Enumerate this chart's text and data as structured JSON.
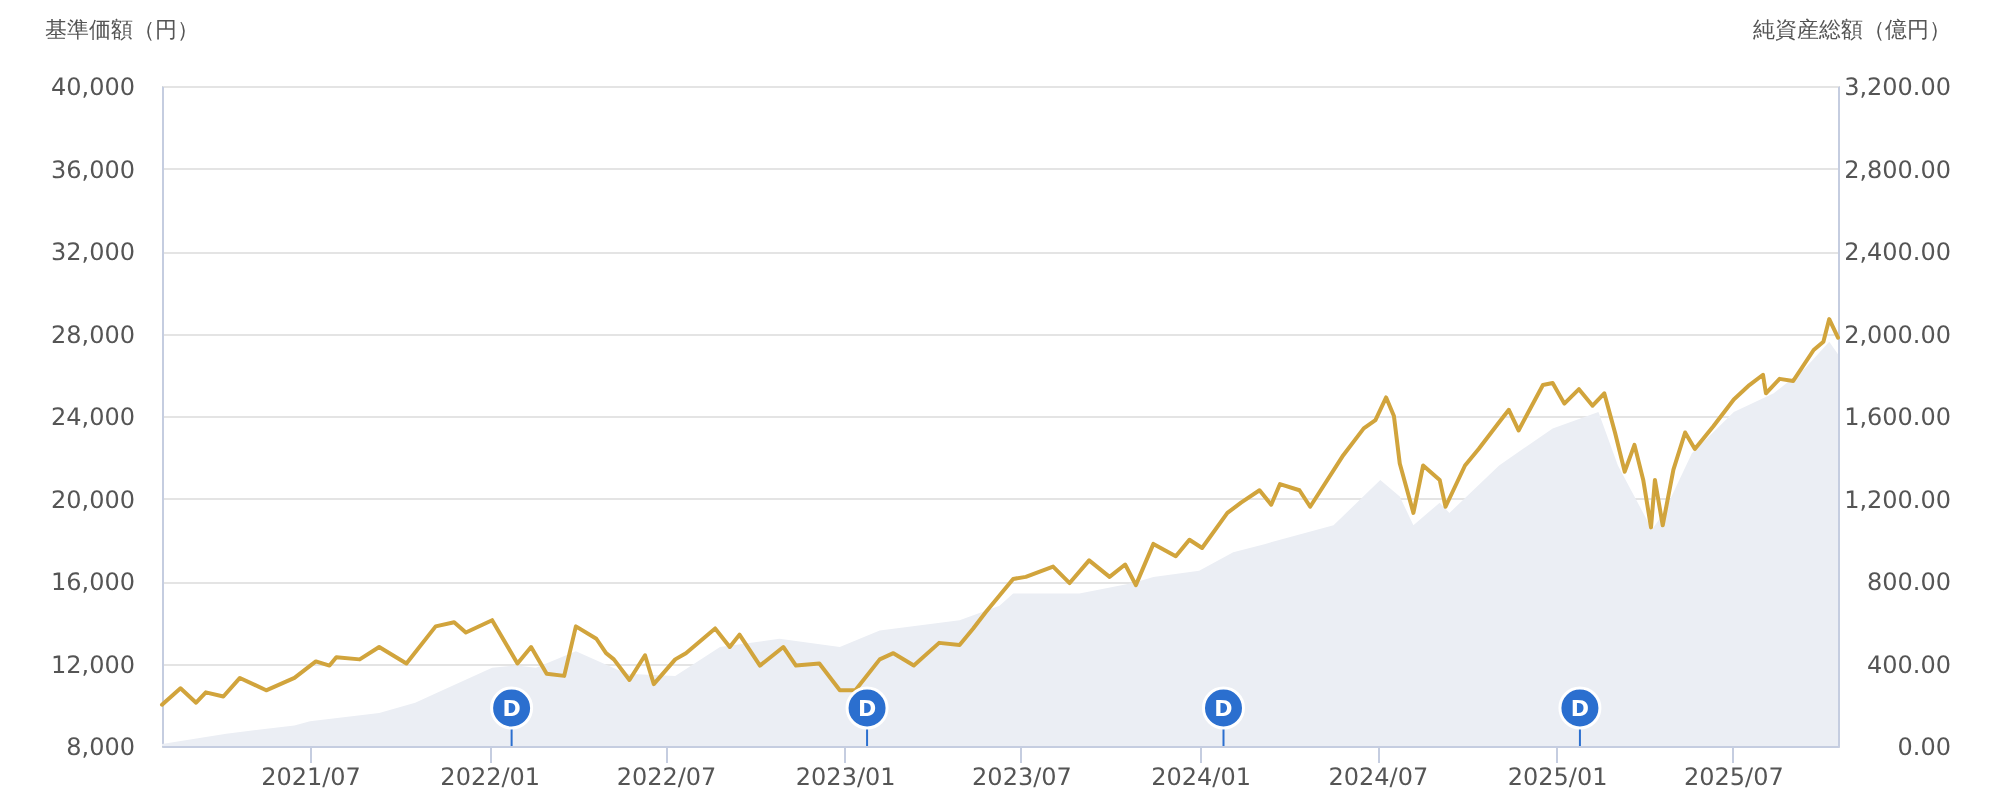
{
  "chart_data": {
    "type": "line",
    "ylabel": "基準価額（円）",
    "y2label": "純資産総額（億円）",
    "xlim": [
      "2021-01-30",
      "2025-10-17"
    ],
    "xticks": [
      {
        "value": "2021-07",
        "label": "2021/07"
      },
      {
        "value": "2022-01",
        "label": "2022/01"
      },
      {
        "value": "2022-07",
        "label": "2022/07"
      },
      {
        "value": "2023-01",
        "label": "2023/01"
      },
      {
        "value": "2023-07",
        "label": "2023/07"
      },
      {
        "value": "2024-01",
        "label": "2024/01"
      },
      {
        "value": "2024-07",
        "label": "2024/07"
      },
      {
        "value": "2025-01",
        "label": "2025/01"
      },
      {
        "value": "2025-07",
        "label": "2025/07"
      }
    ],
    "ylim": [
      8000,
      40000
    ],
    "yticks": [
      {
        "value": 8000,
        "label": "8,000"
      },
      {
        "value": 12000,
        "label": "12,000"
      },
      {
        "value": 16000,
        "label": "16,000"
      },
      {
        "value": 20000,
        "label": "20,000"
      },
      {
        "value": 24000,
        "label": "24,000"
      },
      {
        "value": 28000,
        "label": "28,000"
      },
      {
        "value": 32000,
        "label": "32,000"
      },
      {
        "value": 36000,
        "label": "36,000"
      },
      {
        "value": 40000,
        "label": "40,000"
      }
    ],
    "y2lim": [
      0,
      3200
    ],
    "y2ticks": [
      {
        "value": 0,
        "label": "0.00"
      },
      {
        "value": 400,
        "label": "400.00"
      },
      {
        "value": 800,
        "label": "800.00"
      },
      {
        "value": 1200,
        "label": "1,200.00"
      },
      {
        "value": 1600,
        "label": "1,600.00"
      },
      {
        "value": 2000,
        "label": "2,000.00"
      },
      {
        "value": 2400,
        "label": "2,400.00"
      },
      {
        "value": 2800,
        "label": "2,800.00"
      },
      {
        "value": 3200,
        "label": "3,200.00"
      }
    ],
    "grid": "y",
    "series": [
      {
        "type": "area",
        "axis": "y2",
        "color": "#ebeef4",
        "x": [
          "2021-01-30",
          "2021-04-06",
          "2021-06-15",
          "2021-07-01",
          "2021-09-10",
          "2021-10-17",
          "2021-11-09",
          "2022-01-04",
          "2022-01-29",
          "2022-02-18",
          "2022-03-31",
          "2022-05-22",
          "2022-07-11",
          "2022-08-26",
          "2022-10-26",
          "2022-12-27",
          "2023-02-06",
          "2023-04-29",
          "2023-06-09",
          "2023-06-23",
          "2023-08-30",
          "2023-10-24",
          "2023-11-14",
          "2023-12-31",
          "2024-02-04",
          "2024-03-08",
          "2024-05-17",
          "2024-07-04",
          "2024-07-24",
          "2024-08-07",
          "2024-09-03",
          "2024-09-13",
          "2024-11-03",
          "2024-12-28",
          "2025-02-13",
          "2025-03-05",
          "2025-04-09",
          "2025-04-21",
          "2025-05-20",
          "2025-07-02",
          "2025-08-12",
          "2025-09-13",
          "2025-10-08",
          "2025-10-17"
        ],
        "values": [
          10,
          60,
          100,
          120,
          160,
          210,
          260,
          380,
          390,
          380,
          460,
          350,
          340,
          480,
          520,
          480,
          560,
          610,
          680,
          740,
          740,
          790,
          820,
          850,
          940,
          980,
          1070,
          1290,
          1210,
          1070,
          1180,
          1130,
          1360,
          1540,
          1620,
          1360,
          1050,
          1130,
          1420,
          1620,
          1710,
          1830,
          1960,
          1900
        ]
      },
      {
        "type": "line",
        "color": "#d1a43c",
        "x": [
          "2021-01-30",
          "2021-02-18",
          "2021-03-06",
          "2021-03-16",
          "2021-04-03",
          "2021-04-20",
          "2021-05-17",
          "2021-06-15",
          "2021-07-07",
          "2021-07-21",
          "2021-07-28",
          "2021-08-21",
          "2021-09-10",
          "2021-10-08",
          "2021-11-07",
          "2021-11-26",
          "2021-12-08",
          "2022-01-04",
          "2022-01-30",
          "2022-02-13",
          "2022-03-01",
          "2022-03-19",
          "2022-03-31",
          "2022-04-21",
          "2022-05-01",
          "2022-05-09",
          "2022-05-25",
          "2022-06-10",
          "2022-06-19",
          "2022-07-11",
          "2022-07-22",
          "2022-08-21",
          "2022-09-05",
          "2022-09-15",
          "2022-10-06",
          "2022-10-30",
          "2022-11-12",
          "2022-12-06",
          "2022-12-27",
          "2023-01-12",
          "2023-02-06",
          "2023-02-20",
          "2023-03-13",
          "2023-04-08",
          "2023-04-29",
          "2023-05-13",
          "2023-05-26",
          "2023-06-23",
          "2023-07-06",
          "2023-08-03",
          "2023-08-20",
          "2023-09-09",
          "2023-09-30",
          "2023-10-16",
          "2023-10-27",
          "2023-11-14",
          "2023-12-07",
          "2023-12-21",
          "2024-01-03",
          "2024-01-29",
          "2024-02-12",
          "2024-03-02",
          "2024-03-14",
          "2024-03-23",
          "2024-04-12",
          "2024-04-23",
          "2024-05-27",
          "2024-06-17",
          "2024-06-29",
          "2024-07-10",
          "2024-07-18",
          "2024-07-24",
          "2024-08-07",
          "2024-08-17",
          "2024-09-03",
          "2024-09-09",
          "2024-09-29",
          "2024-10-13",
          "2024-11-03",
          "2024-11-13",
          "2024-11-23",
          "2024-12-18",
          "2024-12-28",
          "2025-01-09",
          "2025-01-24",
          "2025-02-07",
          "2025-02-19",
          "2025-03-02",
          "2025-03-12",
          "2025-03-22",
          "2025-03-31",
          "2025-04-08",
          "2025-04-12",
          "2025-04-20",
          "2025-05-01",
          "2025-05-13",
          "2025-05-23",
          "2025-06-11",
          "2025-07-02",
          "2025-07-18",
          "2025-08-01",
          "2025-08-04",
          "2025-08-18",
          "2025-09-01",
          "2025-09-22",
          "2025-10-02",
          "2025-10-08",
          "2025-10-17"
        ],
        "values": [
          10000,
          10800,
          10100,
          10600,
          10400,
          11300,
          10700,
          11300,
          12100,
          11900,
          12300,
          12200,
          12800,
          12000,
          13800,
          14000,
          13500,
          14100,
          12000,
          12800,
          11500,
          11400,
          13800,
          13200,
          12500,
          12200,
          11200,
          12400,
          11000,
          12200,
          12500,
          13700,
          12800,
          13400,
          11900,
          12800,
          11900,
          12000,
          10700,
          10700,
          12200,
          12500,
          11900,
          13000,
          12900,
          13700,
          14500,
          16100,
          16200,
          16700,
          15900,
          17000,
          16200,
          16800,
          15800,
          17800,
          17200,
          18000,
          17600,
          19300,
          19800,
          20400,
          19700,
          20700,
          20400,
          19600,
          22100,
          23400,
          23800,
          24900,
          24000,
          21700,
          19300,
          21600,
          20900,
          19600,
          21600,
          22400,
          23700,
          24300,
          23300,
          25500,
          25600,
          24600,
          25300,
          24500,
          25100,
          23200,
          21300,
          22600,
          20900,
          18600,
          20900,
          18700,
          21400,
          23200,
          22400,
          23500,
          24800,
          25500,
          26000,
          25100,
          25800,
          25700,
          27200,
          27600,
          28700,
          27800
        ]
      }
    ],
    "annotations": [
      {
        "text": "D",
        "x": "2022-01-24"
      },
      {
        "text": "D",
        "x": "2023-01-24"
      },
      {
        "text": "D",
        "x": "2024-01-25"
      },
      {
        "text": "D",
        "x": "2025-01-25"
      }
    ]
  }
}
